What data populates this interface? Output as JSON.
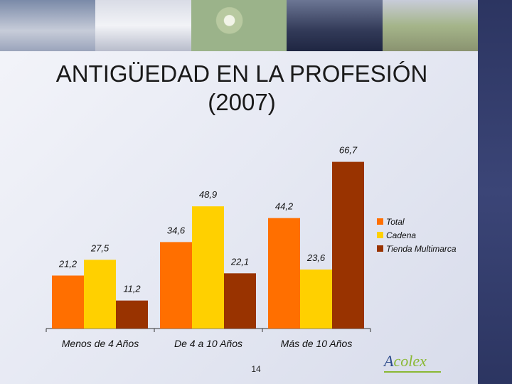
{
  "slide": {
    "title_line1": "ANTIGÜEDAD EN LA PROFESIÓN",
    "title_line2": "(2007)",
    "page_number": "14",
    "logo_text_main": "A",
    "logo_text_accent": "colex"
  },
  "colors": {
    "total": "#ff6f00",
    "cadena": "#ffd000",
    "tienda": "#993300"
  },
  "chart_data": {
    "type": "bar",
    "categories": [
      "Menos de 4 Años",
      "De 4 a 10 Años",
      "Más de 10 Años"
    ],
    "series": [
      {
        "name": "Total",
        "values": [
          21.2,
          34.6,
          44.2
        ],
        "labels": [
          "21,2",
          "34,6",
          "44,2"
        ]
      },
      {
        "name": "Cadena",
        "values": [
          27.5,
          48.9,
          23.6
        ],
        "labels": [
          "27,5",
          "48,9",
          "23,6"
        ]
      },
      {
        "name": "Tienda Multimarca",
        "values": [
          11.2,
          22.1,
          66.7
        ],
        "labels": [
          "11,2",
          "22,1",
          "66,7"
        ]
      }
    ],
    "ylim": [
      0,
      70
    ],
    "grid": false,
    "legend": "right"
  }
}
